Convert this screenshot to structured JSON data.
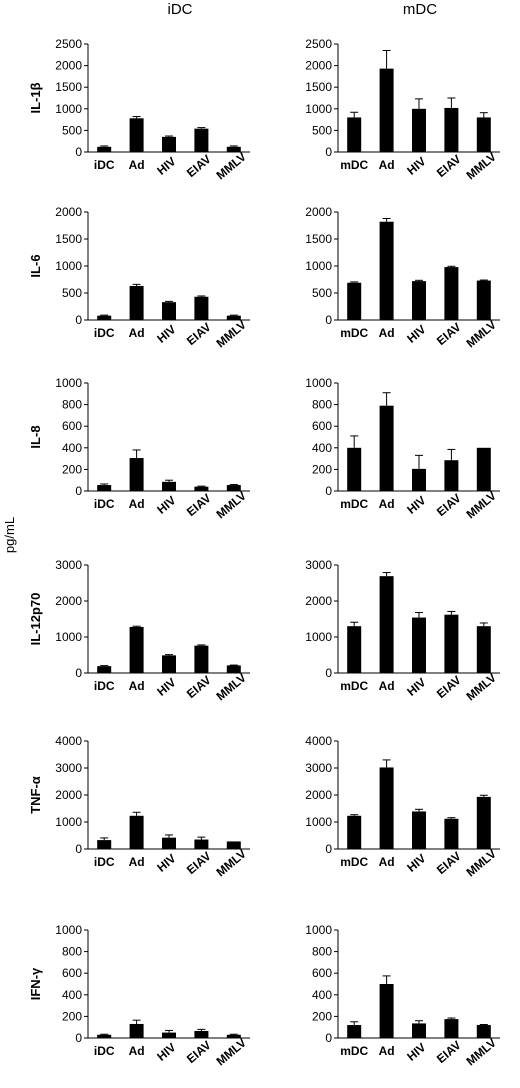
{
  "column_titles": [
    "iDC",
    "mDC"
  ],
  "y_unit_label": "pg/mL",
  "colors": {
    "bar": "#000000",
    "axis": "#000000"
  },
  "chart_data": [
    {
      "type": "bar",
      "row": 0,
      "col": 0,
      "ylabel": "IL-1β",
      "ylim": [
        0,
        2500
      ],
      "yticks": [
        0,
        500,
        1000,
        1500,
        2000,
        2500
      ],
      "categories": [
        "iDC",
        "Ad",
        "HIV",
        "EIAV",
        "MMLV"
      ],
      "values": [
        120,
        780,
        350,
        540,
        120
      ],
      "errors": [
        20,
        40,
        20,
        25,
        20
      ]
    },
    {
      "type": "bar",
      "row": 0,
      "col": 1,
      "ylabel": "",
      "ylim": [
        0,
        2500
      ],
      "yticks": [
        0,
        500,
        1000,
        1500,
        2000,
        2500
      ],
      "categories": [
        "mDC",
        "Ad",
        "HIV",
        "EIAV",
        "MMLV"
      ],
      "values": [
        800,
        1930,
        1000,
        1020,
        800
      ],
      "errors": [
        120,
        420,
        230,
        230,
        110
      ]
    },
    {
      "type": "bar",
      "row": 1,
      "col": 0,
      "ylabel": "IL-6",
      "ylim": [
        0,
        2000
      ],
      "yticks": [
        0,
        500,
        1000,
        1500,
        2000
      ],
      "categories": [
        "iDC",
        "Ad",
        "HIV",
        "EIAV",
        "MMLV"
      ],
      "values": [
        80,
        630,
        330,
        430,
        80
      ],
      "errors": [
        10,
        30,
        15,
        15,
        10
      ]
    },
    {
      "type": "bar",
      "row": 1,
      "col": 1,
      "ylabel": "",
      "ylim": [
        0,
        2000
      ],
      "yticks": [
        0,
        500,
        1000,
        1500,
        2000
      ],
      "categories": [
        "mDC",
        "Ad",
        "HIV",
        "EIAV",
        "MMLV"
      ],
      "values": [
        690,
        1820,
        720,
        980,
        730
      ],
      "errors": [
        15,
        60,
        15,
        15,
        10
      ]
    },
    {
      "type": "bar",
      "row": 2,
      "col": 0,
      "ylabel": "IL-8",
      "ylim": [
        0,
        1000
      ],
      "yticks": [
        0,
        200,
        400,
        600,
        800,
        1000
      ],
      "categories": [
        "iDC",
        "Ad",
        "HIV",
        "EIAV",
        "MMLV"
      ],
      "values": [
        55,
        305,
        85,
        40,
        55
      ],
      "errors": [
        10,
        75,
        15,
        5,
        5
      ]
    },
    {
      "type": "bar",
      "row": 2,
      "col": 1,
      "ylabel": "",
      "ylim": [
        0,
        1000
      ],
      "yticks": [
        0,
        200,
        400,
        600,
        800,
        1000
      ],
      "categories": [
        "mDC",
        "Ad",
        "HIV",
        "EIAV",
        "MMLV"
      ],
      "values": [
        400,
        790,
        205,
        285,
        400
      ],
      "errors": [
        110,
        120,
        125,
        100,
        0
      ]
    },
    {
      "type": "bar",
      "row": 3,
      "col": 0,
      "ylabel": "IL-12p70",
      "ylim": [
        0,
        3000
      ],
      "yticks": [
        0,
        1000,
        2000,
        3000
      ],
      "categories": [
        "iDC",
        "Ad",
        "HIV",
        "EIAV",
        "MMLV"
      ],
      "values": [
        190,
        1280,
        490,
        760,
        210
      ],
      "errors": [
        15,
        20,
        20,
        20,
        10
      ]
    },
    {
      "type": "bar",
      "row": 3,
      "col": 1,
      "ylabel": "",
      "ylim": [
        0,
        3000
      ],
      "yticks": [
        0,
        1000,
        2000,
        3000
      ],
      "categories": [
        "mDC",
        "Ad",
        "HIV",
        "EIAV",
        "MMLV"
      ],
      "values": [
        1300,
        2690,
        1540,
        1620,
        1300
      ],
      "errors": [
        110,
        100,
        140,
        90,
        90
      ]
    },
    {
      "type": "bar",
      "row": 4,
      "col": 0,
      "ylabel": "TNF-α",
      "ylim": [
        0,
        4000
      ],
      "yticks": [
        0,
        1000,
        2000,
        3000,
        4000
      ],
      "categories": [
        "iDC",
        "Ad",
        "HIV",
        "EIAV",
        "MMLV"
      ],
      "values": [
        330,
        1230,
        420,
        350,
        280
      ],
      "errors": [
        80,
        130,
        100,
        90,
        0
      ]
    },
    {
      "type": "bar",
      "row": 4,
      "col": 1,
      "ylabel": "",
      "ylim": [
        0,
        4000
      ],
      "yticks": [
        0,
        1000,
        2000,
        3000,
        4000
      ],
      "categories": [
        "mDC",
        "Ad",
        "HIV",
        "EIAV",
        "MMLV"
      ],
      "values": [
        1230,
        3020,
        1390,
        1120,
        1930
      ],
      "errors": [
        40,
        280,
        80,
        40,
        60
      ]
    },
    {
      "type": "bar",
      "row": 5,
      "col": 0,
      "ylabel": "IFN-γ",
      "ylim": [
        0,
        1000
      ],
      "yticks": [
        0,
        200,
        400,
        600,
        800,
        1000
      ],
      "categories": [
        "iDC",
        "Ad",
        "HIV",
        "EIAV",
        "MMLV"
      ],
      "values": [
        30,
        130,
        50,
        65,
        30
      ],
      "errors": [
        5,
        35,
        20,
        15,
        5
      ]
    },
    {
      "type": "bar",
      "row": 5,
      "col": 1,
      "ylabel": "",
      "ylim": [
        0,
        1000
      ],
      "yticks": [
        0,
        200,
        400,
        600,
        800,
        1000
      ],
      "categories": [
        "mDC",
        "Ad",
        "HIV",
        "EIAV",
        "MMLV"
      ],
      "values": [
        120,
        500,
        135,
        175,
        120
      ],
      "errors": [
        30,
        75,
        25,
        10,
        5
      ]
    }
  ]
}
